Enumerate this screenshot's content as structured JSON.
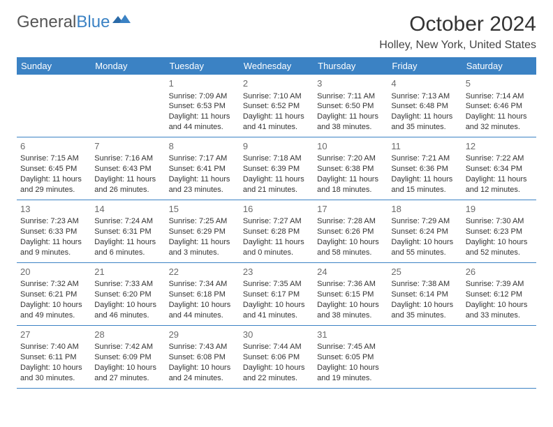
{
  "brand": {
    "part1": "General",
    "part2": "Blue"
  },
  "title": "October 2024",
  "location": "Holley, New York, United States",
  "header_bg": "#3b82c4",
  "day_headers": [
    "Sunday",
    "Monday",
    "Tuesday",
    "Wednesday",
    "Thursday",
    "Friday",
    "Saturday"
  ],
  "weeks": [
    [
      null,
      null,
      {
        "n": "1",
        "sr": "Sunrise: 7:09 AM",
        "ss": "Sunset: 6:53 PM",
        "d1": "Daylight: 11 hours",
        "d2": "and 44 minutes."
      },
      {
        "n": "2",
        "sr": "Sunrise: 7:10 AM",
        "ss": "Sunset: 6:52 PM",
        "d1": "Daylight: 11 hours",
        "d2": "and 41 minutes."
      },
      {
        "n": "3",
        "sr": "Sunrise: 7:11 AM",
        "ss": "Sunset: 6:50 PM",
        "d1": "Daylight: 11 hours",
        "d2": "and 38 minutes."
      },
      {
        "n": "4",
        "sr": "Sunrise: 7:13 AM",
        "ss": "Sunset: 6:48 PM",
        "d1": "Daylight: 11 hours",
        "d2": "and 35 minutes."
      },
      {
        "n": "5",
        "sr": "Sunrise: 7:14 AM",
        "ss": "Sunset: 6:46 PM",
        "d1": "Daylight: 11 hours",
        "d2": "and 32 minutes."
      }
    ],
    [
      {
        "n": "6",
        "sr": "Sunrise: 7:15 AM",
        "ss": "Sunset: 6:45 PM",
        "d1": "Daylight: 11 hours",
        "d2": "and 29 minutes."
      },
      {
        "n": "7",
        "sr": "Sunrise: 7:16 AM",
        "ss": "Sunset: 6:43 PM",
        "d1": "Daylight: 11 hours",
        "d2": "and 26 minutes."
      },
      {
        "n": "8",
        "sr": "Sunrise: 7:17 AM",
        "ss": "Sunset: 6:41 PM",
        "d1": "Daylight: 11 hours",
        "d2": "and 23 minutes."
      },
      {
        "n": "9",
        "sr": "Sunrise: 7:18 AM",
        "ss": "Sunset: 6:39 PM",
        "d1": "Daylight: 11 hours",
        "d2": "and 21 minutes."
      },
      {
        "n": "10",
        "sr": "Sunrise: 7:20 AM",
        "ss": "Sunset: 6:38 PM",
        "d1": "Daylight: 11 hours",
        "d2": "and 18 minutes."
      },
      {
        "n": "11",
        "sr": "Sunrise: 7:21 AM",
        "ss": "Sunset: 6:36 PM",
        "d1": "Daylight: 11 hours",
        "d2": "and 15 minutes."
      },
      {
        "n": "12",
        "sr": "Sunrise: 7:22 AM",
        "ss": "Sunset: 6:34 PM",
        "d1": "Daylight: 11 hours",
        "d2": "and 12 minutes."
      }
    ],
    [
      {
        "n": "13",
        "sr": "Sunrise: 7:23 AM",
        "ss": "Sunset: 6:33 PM",
        "d1": "Daylight: 11 hours",
        "d2": "and 9 minutes."
      },
      {
        "n": "14",
        "sr": "Sunrise: 7:24 AM",
        "ss": "Sunset: 6:31 PM",
        "d1": "Daylight: 11 hours",
        "d2": "and 6 minutes."
      },
      {
        "n": "15",
        "sr": "Sunrise: 7:25 AM",
        "ss": "Sunset: 6:29 PM",
        "d1": "Daylight: 11 hours",
        "d2": "and 3 minutes."
      },
      {
        "n": "16",
        "sr": "Sunrise: 7:27 AM",
        "ss": "Sunset: 6:28 PM",
        "d1": "Daylight: 11 hours",
        "d2": "and 0 minutes."
      },
      {
        "n": "17",
        "sr": "Sunrise: 7:28 AM",
        "ss": "Sunset: 6:26 PM",
        "d1": "Daylight: 10 hours",
        "d2": "and 58 minutes."
      },
      {
        "n": "18",
        "sr": "Sunrise: 7:29 AM",
        "ss": "Sunset: 6:24 PM",
        "d1": "Daylight: 10 hours",
        "d2": "and 55 minutes."
      },
      {
        "n": "19",
        "sr": "Sunrise: 7:30 AM",
        "ss": "Sunset: 6:23 PM",
        "d1": "Daylight: 10 hours",
        "d2": "and 52 minutes."
      }
    ],
    [
      {
        "n": "20",
        "sr": "Sunrise: 7:32 AM",
        "ss": "Sunset: 6:21 PM",
        "d1": "Daylight: 10 hours",
        "d2": "and 49 minutes."
      },
      {
        "n": "21",
        "sr": "Sunrise: 7:33 AM",
        "ss": "Sunset: 6:20 PM",
        "d1": "Daylight: 10 hours",
        "d2": "and 46 minutes."
      },
      {
        "n": "22",
        "sr": "Sunrise: 7:34 AM",
        "ss": "Sunset: 6:18 PM",
        "d1": "Daylight: 10 hours",
        "d2": "and 44 minutes."
      },
      {
        "n": "23",
        "sr": "Sunrise: 7:35 AM",
        "ss": "Sunset: 6:17 PM",
        "d1": "Daylight: 10 hours",
        "d2": "and 41 minutes."
      },
      {
        "n": "24",
        "sr": "Sunrise: 7:36 AM",
        "ss": "Sunset: 6:15 PM",
        "d1": "Daylight: 10 hours",
        "d2": "and 38 minutes."
      },
      {
        "n": "25",
        "sr": "Sunrise: 7:38 AM",
        "ss": "Sunset: 6:14 PM",
        "d1": "Daylight: 10 hours",
        "d2": "and 35 minutes."
      },
      {
        "n": "26",
        "sr": "Sunrise: 7:39 AM",
        "ss": "Sunset: 6:12 PM",
        "d1": "Daylight: 10 hours",
        "d2": "and 33 minutes."
      }
    ],
    [
      {
        "n": "27",
        "sr": "Sunrise: 7:40 AM",
        "ss": "Sunset: 6:11 PM",
        "d1": "Daylight: 10 hours",
        "d2": "and 30 minutes."
      },
      {
        "n": "28",
        "sr": "Sunrise: 7:42 AM",
        "ss": "Sunset: 6:09 PM",
        "d1": "Daylight: 10 hours",
        "d2": "and 27 minutes."
      },
      {
        "n": "29",
        "sr": "Sunrise: 7:43 AM",
        "ss": "Sunset: 6:08 PM",
        "d1": "Daylight: 10 hours",
        "d2": "and 24 minutes."
      },
      {
        "n": "30",
        "sr": "Sunrise: 7:44 AM",
        "ss": "Sunset: 6:06 PM",
        "d1": "Daylight: 10 hours",
        "d2": "and 22 minutes."
      },
      {
        "n": "31",
        "sr": "Sunrise: 7:45 AM",
        "ss": "Sunset: 6:05 PM",
        "d1": "Daylight: 10 hours",
        "d2": "and 19 minutes."
      },
      null,
      null
    ]
  ]
}
